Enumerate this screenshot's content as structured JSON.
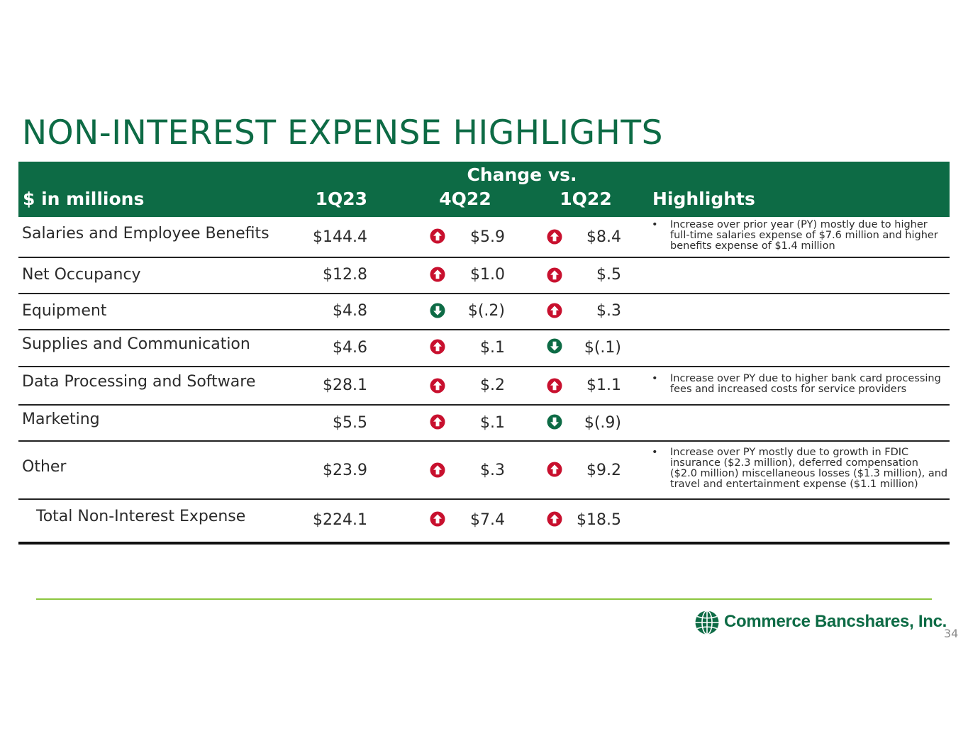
{
  "title": "NON-INTEREST EXPENSE HIGHLIGHTS",
  "colors": {
    "brand_green": "#0d6b45",
    "up_red": "#c8102e",
    "down_green": "#0d6b45",
    "footer_line": "#8cc63f"
  },
  "table": {
    "header": {
      "change_vs": "Change vs.",
      "label": "$ in millions",
      "col_1q23": "1Q23",
      "col_4q22": "4Q22",
      "col_1q22": "1Q22",
      "col_highlights": "Highlights"
    },
    "rows": [
      {
        "label": "Salaries and Employee Benefits",
        "v1q23": "$144.4",
        "d4q22": "up",
        "v4q22": "$5.9",
        "d1q22": "up",
        "v1q22": "$8.4",
        "bullet": "•",
        "highlight": "Increase over prior year (PY) mostly due to higher full-time salaries expense of $7.6 million and higher benefits expense of $1.4 million"
      },
      {
        "label": "Net Occupancy",
        "v1q23": "$12.8",
        "d4q22": "up",
        "v4q22": "$1.0",
        "d1q22": "up",
        "v1q22": "$.5",
        "bullet": "",
        "highlight": ""
      },
      {
        "label": "Equipment",
        "v1q23": "$4.8",
        "d4q22": "down",
        "v4q22": "$(.2)",
        "d1q22": "up",
        "v1q22": "$.3",
        "bullet": "",
        "highlight": ""
      },
      {
        "label": "Supplies and Communication",
        "v1q23": "$4.6",
        "d4q22": "up",
        "v4q22": "$.1",
        "d1q22": "down",
        "v1q22": "$(.1)",
        "bullet": "",
        "highlight": ""
      },
      {
        "label": "Data Processing and Software",
        "v1q23": "$28.1",
        "d4q22": "up",
        "v4q22": "$.2",
        "d1q22": "up",
        "v1q22": "$1.1",
        "bullet": "•",
        "highlight": "Increase over PY due to higher bank card processing fees and increased costs for service providers"
      },
      {
        "label": "Marketing",
        "v1q23": "$5.5",
        "d4q22": "up",
        "v4q22": "$.1",
        "d1q22": "down",
        "v1q22": "$(.9)",
        "bullet": "",
        "highlight": ""
      },
      {
        "label": "Other",
        "v1q23": "$23.9",
        "d4q22": "up",
        "v4q22": "$.3",
        "d1q22": "up",
        "v1q22": "$9.2",
        "bullet": "•",
        "highlight": "Increase over PY mostly due to growth in FDIC insurance ($2.3 million), deferred compensation ($2.0 million) miscellaneous losses ($1.3 million), and travel and entertainment expense ($1.1 million)"
      },
      {
        "label": "Total Non-Interest Expense",
        "v1q23": "$224.1",
        "d4q22": "up",
        "v4q22": "$7.4",
        "d1q22": "up",
        "v1q22": "$18.5",
        "bullet": "",
        "highlight": ""
      }
    ]
  },
  "footer": {
    "logo_text": "Commerce Bancshares, Inc.",
    "page_number": "34"
  }
}
